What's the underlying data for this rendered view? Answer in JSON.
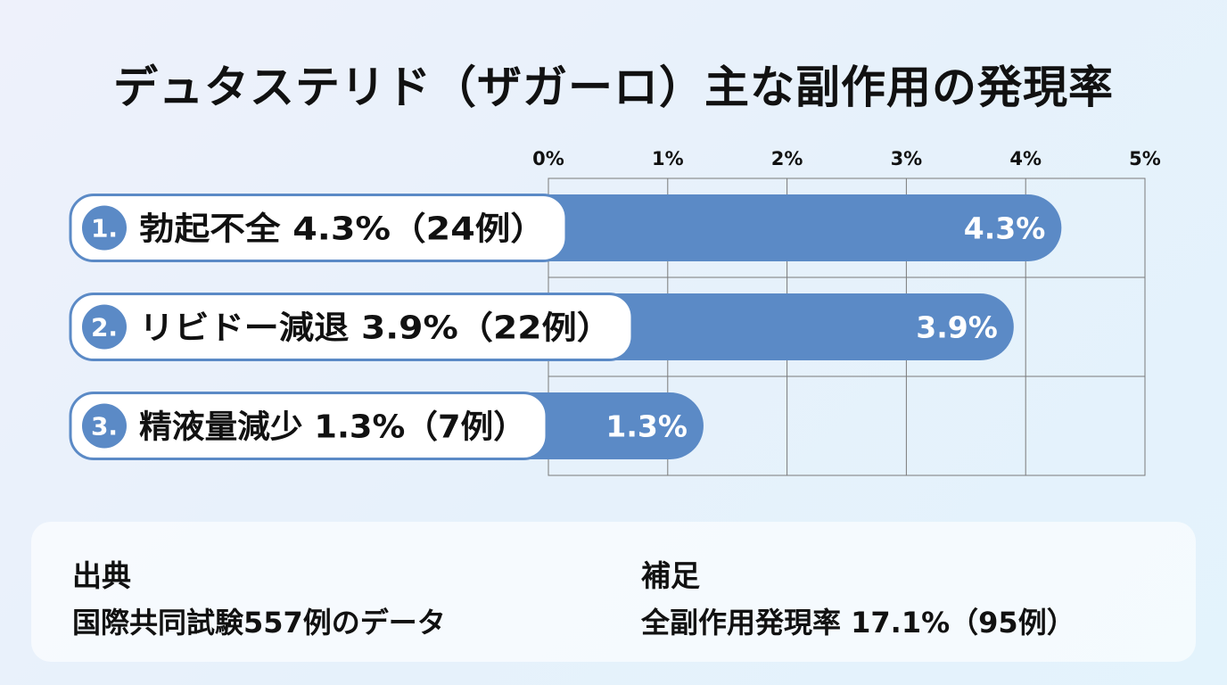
{
  "page": {
    "title": "デュタステリド（ザガーロ）主な副作用の発現率"
  },
  "chart_data": {
    "type": "bar",
    "orientation": "horizontal",
    "title": "デュタステリド（ザガーロ）主な副作用の発現率",
    "xlabel": "",
    "ylabel": "",
    "xlim": [
      0,
      5
    ],
    "ticks": [
      0,
      1,
      2,
      3,
      4,
      5
    ],
    "tick_labels": [
      "0%",
      "1%",
      "2%",
      "3%",
      "4%",
      "5%"
    ],
    "grid": true,
    "categories": [
      {
        "number": "1.",
        "label": "勃起不全 4.3%（24例）"
      },
      {
        "number": "2.",
        "label": "リビドー減退 3.9%（22例）"
      },
      {
        "number": "3.",
        "label": "精液量減少 1.3%（7例）"
      }
    ],
    "values": [
      4.3,
      3.9,
      1.3
    ],
    "value_labels": [
      "4.3%",
      "3.9%",
      "1.3%"
    ],
    "colors": {
      "bar": "#5b8ac6",
      "badge": "#5b8ac6",
      "grid": "#7a7a7a"
    }
  },
  "info": {
    "source_heading": "出典",
    "source_text": "国際共同試験557例のデータ",
    "note_heading": "補足",
    "note_text": "全副作用発現率 17.1%（95例）"
  }
}
